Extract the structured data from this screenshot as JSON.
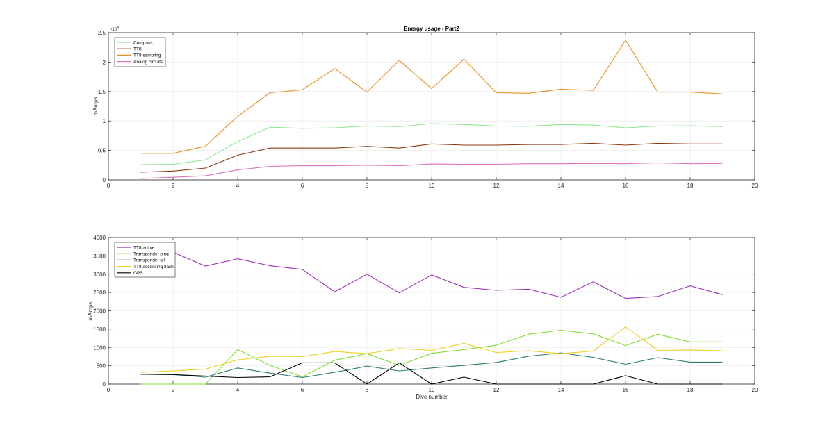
{
  "chart_data": [
    {
      "type": "line",
      "title": "Energy usage - Part2",
      "xlabel": "",
      "ylabel": "mAmps",
      "xlim": [
        0,
        20
      ],
      "ylim": [
        0,
        25000
      ],
      "xticks": [
        "0",
        "2",
        "4",
        "6",
        "8",
        "10",
        "12",
        "14",
        "16",
        "18",
        "20"
      ],
      "yticks": [
        "0",
        "0.5",
        "1",
        "1.5",
        "2",
        "2.5"
      ],
      "y_exponent_base": "×10",
      "y_exponent_power": "4",
      "grid": true,
      "legend_position": "top-left",
      "x": [
        1,
        2,
        3,
        4,
        5,
        6,
        7,
        8,
        9,
        10,
        11,
        12,
        13,
        14,
        15,
        16,
        17,
        18,
        19
      ],
      "series": [
        {
          "name": "Compass",
          "color": "#8fe88f",
          "values": [
            2600,
            2650,
            3400,
            6500,
            8950,
            8750,
            8850,
            9150,
            9050,
            9550,
            9400,
            9150,
            9100,
            9400,
            9300,
            8850,
            9150,
            9200,
            9050
          ]
        },
        {
          "name": "TT8",
          "color": "#8b3a10",
          "values": [
            1300,
            1500,
            2000,
            4200,
            5400,
            5400,
            5400,
            5700,
            5400,
            6100,
            5900,
            5900,
            6000,
            6000,
            6200,
            5900,
            6200,
            6100,
            6100
          ]
        },
        {
          "name": "TT8 sampling",
          "color": "#e8901e",
          "values": [
            4500,
            4500,
            5700,
            10800,
            14800,
            15300,
            18900,
            14900,
            20300,
            15500,
            20500,
            14800,
            14700,
            15400,
            15200,
            23700,
            14900,
            14900,
            14600
          ]
        },
        {
          "name": "Analog circuits",
          "color": "#e070c0",
          "values": [
            250,
            450,
            700,
            1700,
            2300,
            2400,
            2400,
            2500,
            2400,
            2700,
            2650,
            2650,
            2750,
            2750,
            2800,
            2750,
            2900,
            2750,
            2800
          ]
        }
      ]
    },
    {
      "type": "line",
      "title": "",
      "xlabel": "Dive number",
      "ylabel": "mAmps",
      "xlim": [
        0,
        20
      ],
      "ylim": [
        0,
        4000
      ],
      "xticks": [
        "0",
        "2",
        "4",
        "6",
        "8",
        "10",
        "12",
        "14",
        "16",
        "18",
        "20"
      ],
      "yticks": [
        "0",
        "500",
        "1000",
        "1500",
        "2000",
        "2500",
        "3000",
        "3500",
        "4000"
      ],
      "grid": true,
      "legend_position": "top-left",
      "x": [
        1,
        2,
        3,
        4,
        5,
        6,
        7,
        8,
        9,
        10,
        11,
        12,
        13,
        14,
        15,
        16,
        17,
        18,
        19
      ],
      "series": [
        {
          "name": "TT8 active",
          "color": "#9b30b8",
          "values": [
            3800,
            3600,
            3220,
            3420,
            3230,
            3130,
            2520,
            3000,
            2490,
            2980,
            2640,
            2560,
            2590,
            2370,
            2790,
            2340,
            2390,
            2680,
            2440
          ]
        },
        {
          "name": "Transponder ping",
          "color": "#7fe030",
          "values": [
            0,
            0,
            0,
            940,
            510,
            200,
            650,
            830,
            510,
            840,
            940,
            1060,
            1360,
            1470,
            1370,
            1050,
            1360,
            1150,
            1150
          ]
        },
        {
          "name": "Transponder all",
          "color": "#2e7d6e",
          "values": [
            270,
            260,
            190,
            440,
            300,
            180,
            320,
            490,
            360,
            440,
            510,
            590,
            760,
            850,
            730,
            540,
            720,
            600,
            600
          ]
        },
        {
          "name": "TT8 accessing flash",
          "color": "#f0d020",
          "values": [
            320,
            360,
            410,
            660,
            760,
            750,
            890,
            830,
            970,
            920,
            1110,
            860,
            910,
            830,
            900,
            1560,
            920,
            930,
            910
          ]
        },
        {
          "name": "GPS",
          "color": "#000000",
          "values": [
            270,
            260,
            220,
            180,
            200,
            580,
            580,
            0,
            580,
            0,
            190,
            0,
            0,
            0,
            0,
            230,
            0,
            0,
            0
          ]
        }
      ]
    }
  ]
}
